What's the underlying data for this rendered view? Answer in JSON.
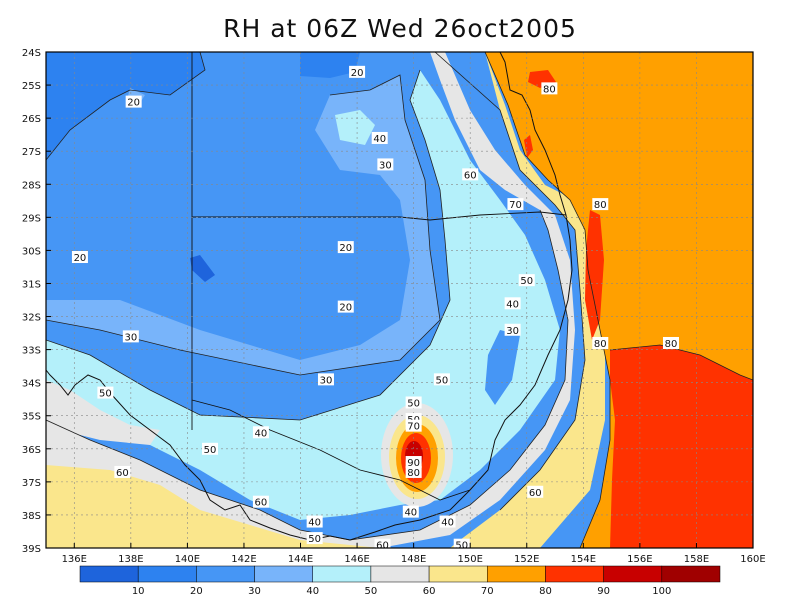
{
  "title": "RH at 06Z Wed 26oct2005",
  "map": {
    "lon_range": [
      135,
      160
    ],
    "lat_range": [
      -39,
      -24
    ],
    "lon_ticks": [
      "136E",
      "138E",
      "140E",
      "142E",
      "144E",
      "146E",
      "148E",
      "150E",
      "152E",
      "154E",
      "156E",
      "158E",
      "160E"
    ],
    "lat_ticks": [
      "24S",
      "25S",
      "26S",
      "27S",
      "28S",
      "29S",
      "30S",
      "31S",
      "32S",
      "33S",
      "34S",
      "35S",
      "36S",
      "37S",
      "38S",
      "39S"
    ],
    "grid": "dotted"
  },
  "colorbar": {
    "labels": [
      "10",
      "20",
      "30",
      "40",
      "50",
      "60",
      "70",
      "80",
      "90",
      "100"
    ],
    "colors": [
      "#1e64dc",
      "#2d82f0",
      "#4696f5",
      "#78b4fa",
      "#b4f0fa",
      "#e6e6e6",
      "#fae68c",
      "#ffa000",
      "#ff3200",
      "#c80000",
      "#a00000"
    ]
  },
  "contour_labels": [
    {
      "text": "20",
      "lon": 146.0,
      "lat": -24.6
    },
    {
      "text": "20",
      "lon": 138.1,
      "lat": -25.5
    },
    {
      "text": "40",
      "lon": 146.8,
      "lat": -26.6
    },
    {
      "text": "30",
      "lon": 147.0,
      "lat": -27.4
    },
    {
      "text": "80",
      "lon": 152.8,
      "lat": -25.1
    },
    {
      "text": "60",
      "lon": 150.0,
      "lat": -27.7
    },
    {
      "text": "70",
      "lon": 151.6,
      "lat": -28.6
    },
    {
      "text": "80",
      "lon": 154.6,
      "lat": -28.6
    },
    {
      "text": "20",
      "lon": 145.6,
      "lat": -29.9
    },
    {
      "text": "20",
      "lon": 136.2,
      "lat": -30.2
    },
    {
      "text": "50",
      "lon": 152.0,
      "lat": -30.9
    },
    {
      "text": "40",
      "lon": 151.5,
      "lat": -31.6
    },
    {
      "text": "20",
      "lon": 145.6,
      "lat": -31.7
    },
    {
      "text": "30",
      "lon": 151.5,
      "lat": -32.4
    },
    {
      "text": "30",
      "lon": 138.0,
      "lat": -32.6
    },
    {
      "text": "80",
      "lon": 154.6,
      "lat": -32.8
    },
    {
      "text": "80",
      "lon": 157.1,
      "lat": -32.8
    },
    {
      "text": "50",
      "lon": 149.0,
      "lat": -33.9
    },
    {
      "text": "30",
      "lon": 144.9,
      "lat": -33.9
    },
    {
      "text": "50",
      "lon": 137.1,
      "lat": -34.3
    },
    {
      "text": "50",
      "lon": 148.0,
      "lat": -34.6
    },
    {
      "text": "50",
      "lon": 148.0,
      "lat": -35.1
    },
    {
      "text": "70",
      "lon": 148.0,
      "lat": -35.3
    },
    {
      "text": "40",
      "lon": 142.6,
      "lat": -35.5
    },
    {
      "text": "50",
      "lon": 140.8,
      "lat": -36.0
    },
    {
      "text": "90",
      "lon": 148.0,
      "lat": -36.4
    },
    {
      "text": "80",
      "lon": 148.0,
      "lat": -36.7
    },
    {
      "text": "60",
      "lon": 137.7,
      "lat": -36.7
    },
    {
      "text": "60",
      "lon": 152.3,
      "lat": -37.3
    },
    {
      "text": "60",
      "lon": 142.6,
      "lat": -37.6
    },
    {
      "text": "40",
      "lon": 147.9,
      "lat": -37.9
    },
    {
      "text": "40",
      "lon": 144.5,
      "lat": -38.2
    },
    {
      "text": "40",
      "lon": 149.2,
      "lat": -38.2
    },
    {
      "text": "50",
      "lon": 144.5,
      "lat": -38.7
    },
    {
      "text": "60",
      "lon": 146.9,
      "lat": -38.9
    },
    {
      "text": "50",
      "lon": 149.7,
      "lat": -38.9
    }
  ]
}
